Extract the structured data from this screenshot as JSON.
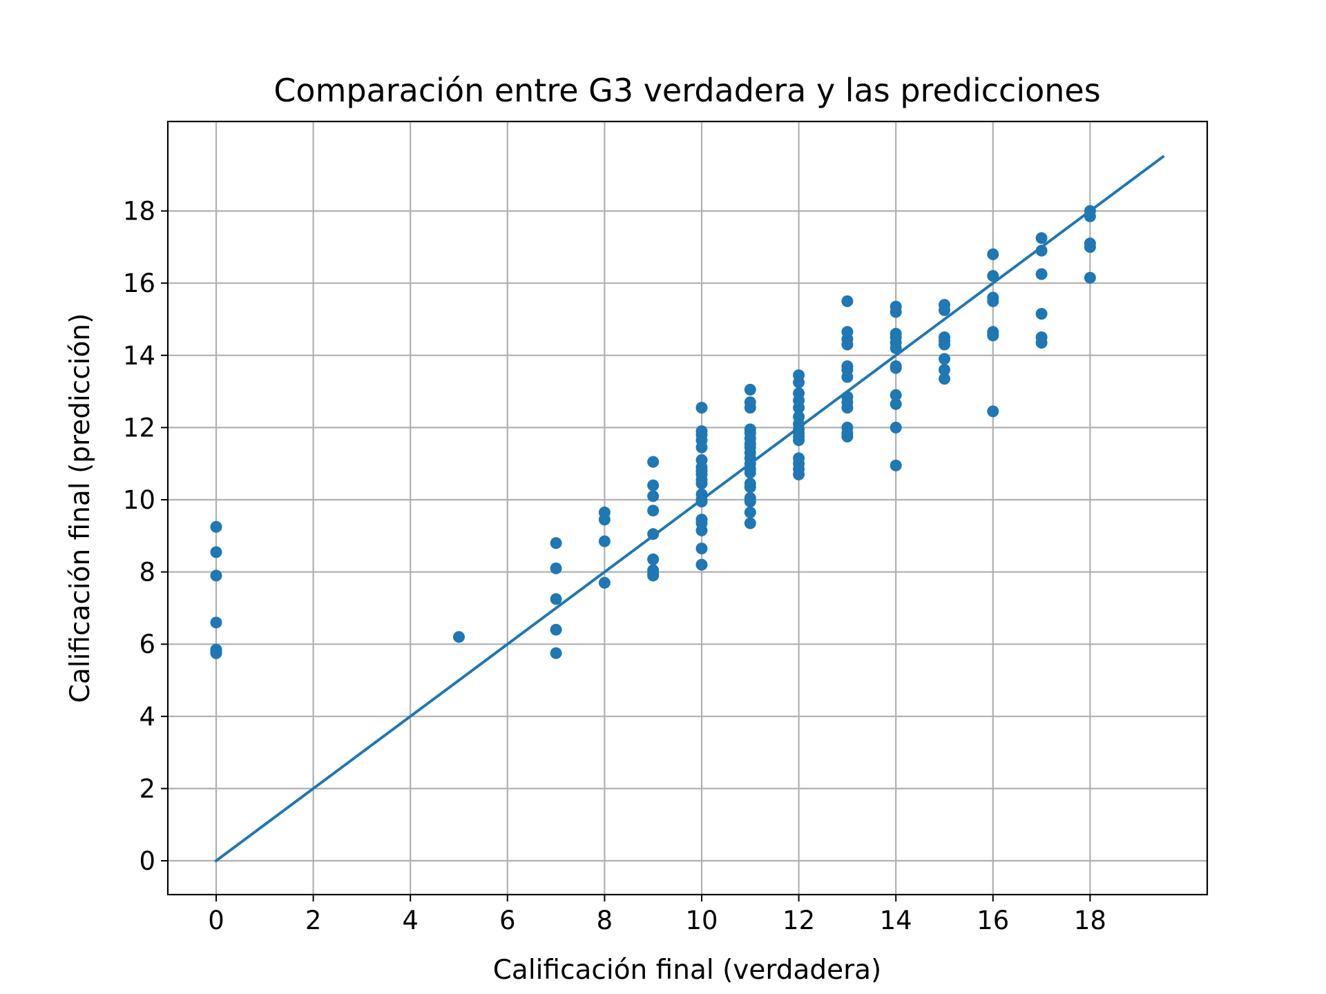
{
  "chart_data": {
    "type": "scatter",
    "title": "Comparación entre G3 verdadera y las predicciones",
    "xlabel": "Calificación final (verdadera)",
    "ylabel": "Calificación final (predicción)",
    "xlim": [
      -1,
      20.5
    ],
    "ylim": [
      -1,
      20.5
    ],
    "xticks": [
      "0",
      "2",
      "4",
      "6",
      "8",
      "10",
      "12",
      "14",
      "16",
      "18"
    ],
    "yticks": [
      "0",
      "2",
      "4",
      "6",
      "8",
      "10",
      "12",
      "14",
      "16",
      "18"
    ],
    "grid": true,
    "marker_color": "#1f77b4",
    "line_color": "#1f77b4",
    "reference_line": {
      "x": [
        0,
        19.5
      ],
      "y": [
        0,
        19.5
      ]
    },
    "points": [
      [
        0,
        9.25
      ],
      [
        0,
        8.55
      ],
      [
        0,
        7.9
      ],
      [
        0,
        6.6
      ],
      [
        0,
        5.85
      ],
      [
        0,
        5.8
      ],
      [
        0,
        5.75
      ],
      [
        5,
        6.2
      ],
      [
        7,
        8.8
      ],
      [
        7,
        8.1
      ],
      [
        7,
        7.25
      ],
      [
        7,
        6.4
      ],
      [
        7,
        5.75
      ],
      [
        8,
        9.65
      ],
      [
        8,
        9.45
      ],
      [
        8,
        8.85
      ],
      [
        8,
        7.7
      ],
      [
        9,
        11.05
      ],
      [
        9,
        10.4
      ],
      [
        9,
        10.1
      ],
      [
        9,
        9.7
      ],
      [
        9,
        9.05
      ],
      [
        9,
        8.35
      ],
      [
        9,
        8.05
      ],
      [
        9,
        7.95
      ],
      [
        9,
        7.9
      ],
      [
        10,
        12.55
      ],
      [
        10,
        11.9
      ],
      [
        10,
        11.8
      ],
      [
        10,
        11.65
      ],
      [
        10,
        11.45
      ],
      [
        10,
        11.1
      ],
      [
        10,
        10.9
      ],
      [
        10,
        10.8
      ],
      [
        10,
        10.7
      ],
      [
        10,
        10.55
      ],
      [
        10,
        10.45
      ],
      [
        10,
        10.15
      ],
      [
        10,
        10.0
      ],
      [
        10,
        9.95
      ],
      [
        10,
        9.45
      ],
      [
        10,
        9.35
      ],
      [
        10,
        9.15
      ],
      [
        10,
        8.65
      ],
      [
        10,
        8.2
      ],
      [
        11,
        13.05
      ],
      [
        11,
        12.7
      ],
      [
        11,
        12.55
      ],
      [
        11,
        11.95
      ],
      [
        11,
        11.85
      ],
      [
        11,
        11.7
      ],
      [
        11,
        11.55
      ],
      [
        11,
        11.45
      ],
      [
        11,
        11.3
      ],
      [
        11,
        11.15
      ],
      [
        11,
        11.0
      ],
      [
        11,
        10.85
      ],
      [
        11,
        10.75
      ],
      [
        11,
        10.45
      ],
      [
        11,
        10.35
      ],
      [
        11,
        10.05
      ],
      [
        11,
        9.95
      ],
      [
        11,
        9.65
      ],
      [
        11,
        9.35
      ],
      [
        12,
        13.45
      ],
      [
        12,
        13.25
      ],
      [
        12,
        12.95
      ],
      [
        12,
        12.75
      ],
      [
        12,
        12.55
      ],
      [
        12,
        12.3
      ],
      [
        12,
        12.1
      ],
      [
        12,
        11.95
      ],
      [
        12,
        11.85
      ],
      [
        12,
        11.75
      ],
      [
        12,
        11.65
      ],
      [
        12,
        11.15
      ],
      [
        12,
        11.0
      ],
      [
        12,
        10.85
      ],
      [
        12,
        10.7
      ],
      [
        13,
        15.5
      ],
      [
        13,
        14.65
      ],
      [
        13,
        14.45
      ],
      [
        13,
        14.3
      ],
      [
        13,
        13.7
      ],
      [
        13,
        13.6
      ],
      [
        13,
        13.4
      ],
      [
        13,
        12.85
      ],
      [
        13,
        12.7
      ],
      [
        13,
        12.55
      ],
      [
        13,
        12.0
      ],
      [
        13,
        11.85
      ],
      [
        13,
        11.75
      ],
      [
        14,
        15.35
      ],
      [
        14,
        15.2
      ],
      [
        14,
        14.6
      ],
      [
        14,
        14.5
      ],
      [
        14,
        14.35
      ],
      [
        14,
        14.2
      ],
      [
        14,
        13.7
      ],
      [
        14,
        13.65
      ],
      [
        14,
        12.9
      ],
      [
        14,
        12.65
      ],
      [
        14,
        12.0
      ],
      [
        14,
        10.95
      ],
      [
        15,
        15.4
      ],
      [
        15,
        15.25
      ],
      [
        15,
        14.5
      ],
      [
        15,
        14.4
      ],
      [
        15,
        14.3
      ],
      [
        15,
        13.9
      ],
      [
        15,
        13.6
      ],
      [
        15,
        13.35
      ],
      [
        16,
        16.8
      ],
      [
        16,
        16.2
      ],
      [
        16,
        15.6
      ],
      [
        16,
        15.5
      ],
      [
        16,
        14.65
      ],
      [
        16,
        14.55
      ],
      [
        16,
        12.45
      ],
      [
        17,
        17.25
      ],
      [
        17,
        16.9
      ],
      [
        17,
        16.25
      ],
      [
        17,
        15.15
      ],
      [
        17,
        14.5
      ],
      [
        17,
        14.35
      ],
      [
        18,
        18.0
      ],
      [
        18,
        17.85
      ],
      [
        18,
        17.1
      ],
      [
        18,
        17.0
      ],
      [
        18,
        16.15
      ]
    ]
  }
}
